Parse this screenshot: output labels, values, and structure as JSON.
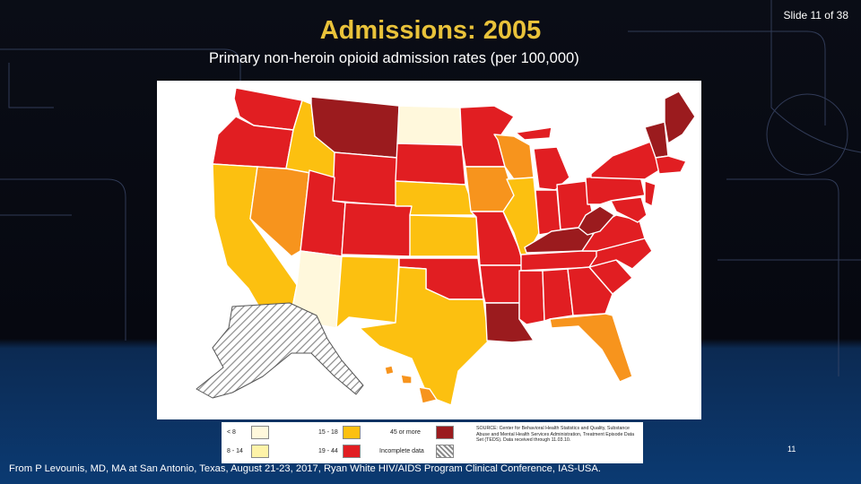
{
  "slide": {
    "title": "Admissions: 2005",
    "slide_number": "Slide 11 of 38",
    "subtitle": "Primary non-heroin opioid admission rates (per 100,000)",
    "footer": "From P Levounis, MD, MA at San Antonio, Texas, August 21-23, 2017, Ryan White HIV/AIDS Program Clinical Conference, IAS-USA.",
    "page_number": "11"
  },
  "legend": {
    "items": [
      {
        "label": "< 8",
        "color": "#fff8dc"
      },
      {
        "label": "8 - 14",
        "color": "#fef3a8"
      },
      {
        "label": "15 - 18",
        "color": "#fcc010"
      },
      {
        "label": "19 - 44",
        "color": "#e11e22"
      },
      {
        "label": "45 or more",
        "color": "#9b1b1e"
      },
      {
        "label": "Incomplete data",
        "color": "hatched"
      }
    ],
    "source": "SOURCE: Center for Behavioral Health Statistics and Quality, Substance Abuse and Mental Health Services Administration, Treatment Episode Data Set (TEDS). Data received through 11.03.10."
  },
  "map": {
    "colors": {
      "lt8": "#fff8dc",
      "r15_18": "#fcc010",
      "r19_44": "#e11e22",
      "r45plus": "#9b1b1e",
      "orange": "#f7941d",
      "incomplete": "hatched"
    },
    "states": [
      {
        "name": "WA",
        "category": "19-44"
      },
      {
        "name": "OR",
        "category": "19-44"
      },
      {
        "name": "CA",
        "category": "15-18"
      },
      {
        "name": "NV",
        "category": "15-18 (orange)"
      },
      {
        "name": "ID",
        "category": "15-18"
      },
      {
        "name": "MT",
        "category": "45 or more"
      },
      {
        "name": "WY",
        "category": "19-44"
      },
      {
        "name": "UT",
        "category": "19-44"
      },
      {
        "name": "AZ",
        "category": "< 8"
      },
      {
        "name": "CO",
        "category": "19-44"
      },
      {
        "name": "NM",
        "category": "15-18"
      },
      {
        "name": "ND",
        "category": "< 8"
      },
      {
        "name": "SD",
        "category": "19-44"
      },
      {
        "name": "NE",
        "category": "15-18"
      },
      {
        "name": "KS",
        "category": "15-18"
      },
      {
        "name": "OK",
        "category": "19-44"
      },
      {
        "name": "TX",
        "category": "15-18"
      },
      {
        "name": "MN",
        "category": "19-44"
      },
      {
        "name": "IA",
        "category": "15-18 (orange)"
      },
      {
        "name": "MO",
        "category": "19-44"
      },
      {
        "name": "AR",
        "category": "19-44"
      },
      {
        "name": "LA",
        "category": "45 or more"
      },
      {
        "name": "WI",
        "category": "15-18 (orange)"
      },
      {
        "name": "IL",
        "category": "15-18"
      },
      {
        "name": "MI",
        "category": "19-44"
      },
      {
        "name": "IN",
        "category": "19-44"
      },
      {
        "name": "OH",
        "category": "19-44"
      },
      {
        "name": "KY",
        "category": "45 or more"
      },
      {
        "name": "TN",
        "category": "19-44"
      },
      {
        "name": "MS",
        "category": "19-44"
      },
      {
        "name": "AL",
        "category": "19-44"
      },
      {
        "name": "GA",
        "category": "19-44"
      },
      {
        "name": "FL",
        "category": "15-18 (orange)"
      },
      {
        "name": "SC",
        "category": "19-44"
      },
      {
        "name": "NC",
        "category": "19-44"
      },
      {
        "name": "VA",
        "category": "19-44"
      },
      {
        "name": "WV",
        "category": "45 or more"
      },
      {
        "name": "PA",
        "category": "19-44"
      },
      {
        "name": "NY",
        "category": "19-44"
      },
      {
        "name": "ME",
        "category": "45 or more"
      },
      {
        "name": "NH/VT",
        "category": "45 or more"
      },
      {
        "name": "New England south",
        "category": "19-44"
      },
      {
        "name": "AK",
        "category": "Incomplete data"
      },
      {
        "name": "HI",
        "category": "15-18 (orange)"
      }
    ]
  }
}
